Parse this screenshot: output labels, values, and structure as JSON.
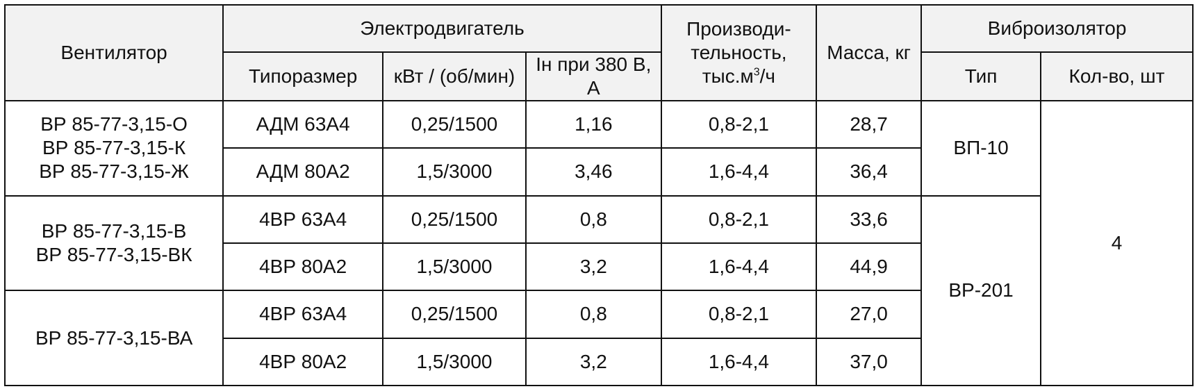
{
  "table": {
    "header": {
      "fan": "Вентилятор",
      "motor": "Электродвигатель",
      "motor_size": "Типоразмер",
      "motor_power": "кВт / (об/мин)",
      "motor_current": "Iн при 380 В, А",
      "capacity_line1": "Производи-",
      "capacity_line2": "тельность,",
      "capacity_line3_pre": "тыс.м",
      "capacity_sup": "3",
      "capacity_line3_post": "/ч",
      "mass": "Масса, кг",
      "isolator": "Виброизолятор",
      "isolator_type": "Тип",
      "isolator_qty": "Кол-во, шт"
    },
    "fan_groups": [
      {
        "lines": [
          "ВР 85-77-3,15-О",
          "ВР 85-77-3,15-К",
          "ВР 85-77-3,15-Ж"
        ]
      },
      {
        "lines": [
          "ВР 85-77-3,15-В",
          "ВР 85-77-3,15-ВК"
        ]
      },
      {
        "lines": [
          "ВР 85-77-3,15-ВА"
        ]
      }
    ],
    "rows": [
      {
        "size": "АДМ 63А4",
        "power": "0,25/1500",
        "current": "1,16",
        "capacity": "0,8-2,1",
        "mass": "28,7"
      },
      {
        "size": "АДМ 80А2",
        "power": "1,5/3000",
        "current": "3,46",
        "capacity": "1,6-4,4",
        "mass": "36,4"
      },
      {
        "size": "4ВР 63А4",
        "power": "0,25/1500",
        "current": "0,8",
        "capacity": "0,8-2,1",
        "mass": "33,6"
      },
      {
        "size": "4ВР 80А2",
        "power": "1,5/3000",
        "current": "3,2",
        "capacity": "1,6-4,4",
        "mass": "44,9"
      },
      {
        "size": "4ВР 63А4",
        "power": "0,25/1500",
        "current": "0,8",
        "capacity": "0,8-2,1",
        "mass": "27,0"
      },
      {
        "size": "4ВР 80А2",
        "power": "1,5/3000",
        "current": "3,2",
        "capacity": "1,6-4,4",
        "mass": "37,0"
      }
    ],
    "isolator_types": [
      "ВП-10",
      "ВР-201"
    ],
    "isolator_qty": "4"
  }
}
